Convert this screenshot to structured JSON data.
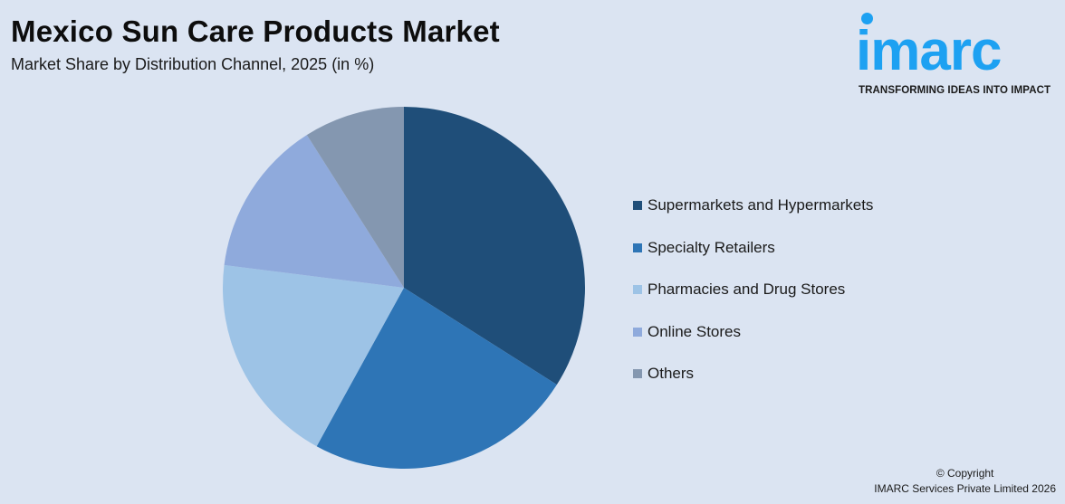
{
  "header": {
    "title": "Mexico Sun Care Products Market",
    "subtitle": "Market Share by Distribution Channel, 2025 (in %)"
  },
  "logo": {
    "wordmark": "imarc",
    "tagline": "TRANSFORMING IDEAS INTO IMPACT",
    "color": "#1da1f2"
  },
  "legend": {
    "items": [
      {
        "label": "Supermarkets and Hypermarkets",
        "color": "#1f4e79"
      },
      {
        "label": "Specialty Retailers",
        "color": "#2e75b6"
      },
      {
        "label": "Pharmacies and Drug Stores",
        "color": "#9dc3e6"
      },
      {
        "label": "Online Stores",
        "color": "#8faadc"
      },
      {
        "label": "Others",
        "color": "#8497b0"
      }
    ]
  },
  "footer": {
    "copyright_line1": "© Copyright",
    "copyright_line2": "IMARC Services Private Limited 2026"
  },
  "chart_data": {
    "type": "pie",
    "title": "Mexico Sun Care Products Market",
    "subtitle": "Market Share by Distribution Channel, 2025 (in %)",
    "categories": [
      "Supermarkets and Hypermarkets",
      "Specialty Retailers",
      "Pharmacies and Drug Stores",
      "Online Stores",
      "Others"
    ],
    "values": [
      34,
      24,
      19,
      14,
      9
    ],
    "colors": [
      "#1f4e79",
      "#2e75b6",
      "#9dc3e6",
      "#8faadc",
      "#8497b0"
    ],
    "start_angle": "12 o'clock, clockwise",
    "legend_position": "right",
    "data_labels": false
  }
}
